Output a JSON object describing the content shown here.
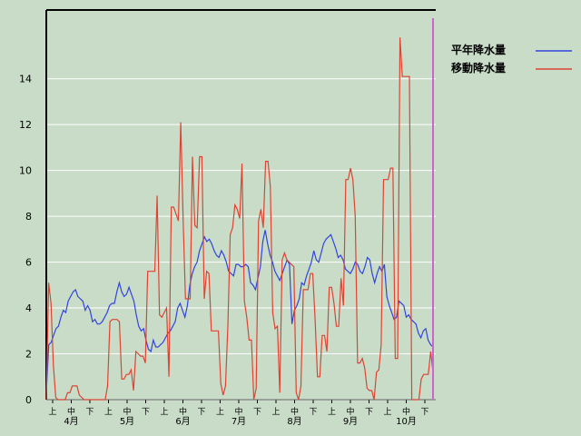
{
  "chart_data": {
    "type": "line",
    "title": "",
    "xlabel": "",
    "ylabel": "",
    "ylim": [
      0,
      17
    ],
    "yticks": [
      0,
      2,
      4,
      6,
      8,
      10,
      12,
      14
    ],
    "grid": true,
    "legend_position": "top-right",
    "x_period_labels": [
      "上",
      "中",
      "下",
      "上",
      "中",
      "下",
      "上",
      "中",
      "下",
      "上",
      "中",
      "下",
      "上",
      "中",
      "下",
      "上",
      "中",
      "下",
      "上",
      "中",
      "下"
    ],
    "x_month_labels": [
      "4月",
      "5月",
      "6月",
      "7月",
      "8月",
      "9月",
      "10月"
    ],
    "marker_line_color": "#cc66cc",
    "series": [
      {
        "name": "平年降水量",
        "color": "#3344dd",
        "values": [
          0.3,
          2.4,
          2.5,
          2.8,
          3.1,
          3.2,
          3.6,
          3.9,
          3.8,
          4.3,
          4.5,
          4.7,
          4.8,
          4.5,
          4.4,
          4.3,
          3.9,
          4.1,
          3.9,
          3.4,
          3.5,
          3.3,
          3.3,
          3.4,
          3.6,
          3.8,
          4.1,
          4.2,
          4.2,
          4.7,
          5.1,
          4.7,
          4.5,
          4.6,
          4.9,
          4.6,
          4.3,
          3.7,
          3.2,
          3.0,
          3.1,
          2.6,
          2.2,
          2.1,
          2.6,
          2.3,
          2.3,
          2.4,
          2.5,
          2.7,
          2.9,
          3.0,
          3.2,
          3.4,
          4.0,
          4.2,
          3.9,
          3.6,
          4.1,
          5.0,
          5.5,
          5.8,
          6.0,
          6.5,
          6.8,
          7.1,
          6.9,
          7.0,
          6.8,
          6.5,
          6.3,
          6.2,
          6.5,
          6.3,
          6.0,
          5.6,
          5.5,
          5.4,
          5.9,
          5.9,
          5.8,
          5.8,
          5.9,
          5.8,
          5.1,
          5.0,
          4.8,
          5.3,
          5.8,
          6.9,
          7.4,
          6.8,
          6.3,
          6.0,
          5.6,
          5.4,
          5.2,
          5.5,
          5.8,
          6.1,
          5.9,
          3.3,
          3.9,
          4.1,
          4.4,
          5.1,
          5.0,
          5.4,
          5.7,
          6.0,
          6.5,
          6.1,
          6.0,
          6.4,
          6.8,
          7.0,
          7.1,
          7.2,
          6.9,
          6.6,
          6.2,
          6.3,
          6.1,
          5.7,
          5.6,
          5.5,
          5.7,
          6.0,
          5.9,
          5.6,
          5.5,
          5.8,
          6.2,
          6.1,
          5.5,
          5.1,
          5.5,
          5.8,
          5.6,
          5.9,
          4.5,
          4.1,
          3.8,
          3.5,
          3.6,
          4.3,
          4.2,
          4.1,
          3.6,
          3.7,
          3.5,
          3.4,
          3.3,
          2.9,
          2.7,
          3.0,
          3.1,
          2.6,
          2.4,
          2.3
        ]
      },
      {
        "name": "移動降水量",
        "color": "#dd4433",
        "values": [
          0,
          5.1,
          4.2,
          1.5,
          0.1,
          0,
          0,
          0,
          0,
          0.3,
          0.3,
          0.6,
          0.6,
          0.6,
          0.2,
          0.1,
          0,
          0,
          0,
          0,
          0,
          0,
          0,
          0,
          0,
          0,
          0.6,
          3.4,
          3.5,
          3.5,
          3.5,
          3.4,
          0.9,
          0.9,
          1.1,
          1.1,
          1.3,
          0.4,
          2.1,
          2.0,
          1.9,
          1.9,
          1.6,
          5.6,
          5.6,
          5.6,
          5.6,
          8.9,
          3.7,
          3.6,
          3.8,
          4.0,
          1.0,
          8.4,
          8.4,
          8.1,
          7.8,
          12.1,
          7.9,
          4.4,
          4.4,
          4.4,
          10.6,
          7.6,
          7.5,
          10.6,
          10.6,
          4.4,
          5.6,
          5.5,
          3.0,
          3.0,
          3.0,
          3.0,
          0.7,
          0.2,
          0.6,
          3.2,
          7.2,
          7.5,
          8.5,
          8.3,
          7.9,
          10.3,
          4.3,
          3.6,
          2.6,
          2.6,
          0,
          0.5,
          7.8,
          8.3,
          7.5,
          10.4,
          10.4,
          9.3,
          3.8,
          3.1,
          3.2,
          0.3,
          6.1,
          6.4,
          6.1,
          6.0,
          5.9,
          5.8,
          0.3,
          0,
          0.6,
          4.8,
          4.8,
          4.8,
          5.5,
          5.5,
          3.5,
          1.0,
          1.0,
          2.8,
          2.8,
          2.1,
          4.9,
          4.9,
          4.2,
          3.2,
          3.2,
          5.3,
          4.1,
          9.6,
          9.6,
          10.1,
          9.6,
          8.0,
          1.6,
          1.6,
          1.8,
          1.4,
          0.5,
          0.4,
          0.4,
          0,
          1.2,
          1.3,
          2.4,
          9.6,
          9.6,
          9.6,
          10.1,
          10.1,
          1.8,
          1.8,
          15.8,
          14.1,
          14.1,
          14.1,
          14.1,
          0,
          0,
          0,
          0,
          0.9,
          1.1,
          1.1,
          1.1,
          2.1,
          1.2
        ]
      }
    ]
  }
}
